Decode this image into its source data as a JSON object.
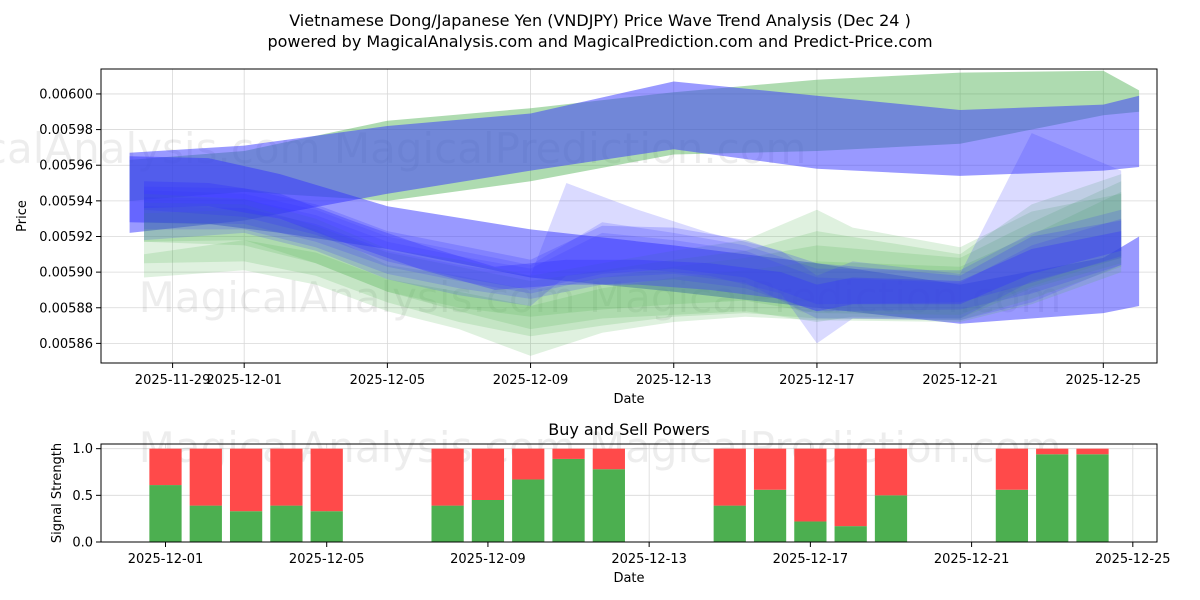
{
  "chart_data": [
    {
      "type": "area",
      "title_line1": "Vietnamese Dong/Japanese Yen (VNDJPY) Price Wave Trend Analysis (Dec 24 )",
      "title_line2": "powered by MagicalAnalysis.com and MagicalPrediction.com and Predict-Price.com",
      "xlabel": "Date",
      "ylabel": "Price",
      "xlim": [
        -2.0,
        27.5
      ],
      "ylim": [
        0.005849,
        0.006014
      ],
      "x_origin": "2025-11-29",
      "x_ticks": [
        {
          "x": 0,
          "label": "2025-11-29"
        },
        {
          "x": 2,
          "label": "2025-12-01"
        },
        {
          "x": 6,
          "label": "2025-12-05"
        },
        {
          "x": 10,
          "label": "2025-12-09"
        },
        {
          "x": 14,
          "label": "2025-12-13"
        },
        {
          "x": 18,
          "label": "2025-12-17"
        },
        {
          "x": 22,
          "label": "2025-12-21"
        },
        {
          "x": 26,
          "label": "2025-12-25"
        }
      ],
      "y_ticks": [
        {
          "y": 0.00586,
          "label": "0.00586"
        },
        {
          "y": 0.00588,
          "label": "0.00588"
        },
        {
          "y": 0.0059,
          "label": "0.00590"
        },
        {
          "y": 0.00592,
          "label": "0.00592"
        },
        {
          "y": 0.00594,
          "label": "0.00594"
        },
        {
          "y": 0.00596,
          "label": "0.00596"
        },
        {
          "y": 0.00598,
          "label": "0.00598"
        },
        {
          "y": 0.006,
          "label": "0.00600"
        }
      ],
      "watermark": "MagicalAnalysis.com    MagicalPrediction.com",
      "colors": {
        "green": "#4caf50",
        "blue": "#3333ff"
      },
      "bands": [
        {
          "color": "green",
          "opacity": 0.45,
          "x": [
            -1.2,
            2,
            6,
            10,
            14,
            18,
            22,
            26,
            27
          ],
          "low": [
            0.00594,
            0.005945,
            0.00594,
            0.005951,
            0.005966,
            0.005968,
            0.005972,
            0.005988,
            0.00599
          ],
          "high": [
            0.005963,
            0.005968,
            0.005985,
            0.005992,
            0.006001,
            0.006008,
            0.006012,
            0.006013,
            0.006002
          ]
        },
        {
          "color": "blue",
          "opacity": 0.5,
          "x": [
            -1.2,
            2,
            6,
            10,
            14,
            18,
            22,
            26,
            27
          ],
          "low": [
            0.005922,
            0.005929,
            0.005944,
            0.005957,
            0.005969,
            0.005958,
            0.005954,
            0.005957,
            0.005959
          ],
          "high": [
            0.005967,
            0.005971,
            0.005982,
            0.005989,
            0.006007,
            0.005999,
            0.005991,
            0.005994,
            0.005999
          ]
        },
        {
          "color": "blue",
          "opacity": 0.5,
          "x": [
            -1.2,
            1,
            3,
            6,
            10,
            14,
            18,
            22,
            26,
            27
          ],
          "low": [
            0.005928,
            0.005927,
            0.005922,
            0.005913,
            0.005897,
            0.005889,
            0.00588,
            0.005871,
            0.005877,
            0.005881
          ],
          "high": [
            0.005965,
            0.005964,
            0.005955,
            0.005937,
            0.005924,
            0.005915,
            0.005905,
            0.005893,
            0.005908,
            0.00592
          ]
        },
        {
          "color": "green",
          "opacity": 0.18,
          "x": [
            -0.8,
            2,
            4,
            6,
            8,
            10,
            12,
            14,
            16,
            18,
            19,
            22,
            24,
            26.5
          ],
          "low": [
            0.005917,
            0.005915,
            0.005905,
            0.005889,
            0.005878,
            0.005868,
            0.005874,
            0.005876,
            0.005878,
            0.005872,
            0.005875,
            0.005874,
            0.005891,
            0.005905
          ],
          "high": [
            0.005944,
            0.005941,
            0.00593,
            0.005913,
            0.005907,
            0.005898,
            0.005905,
            0.005912,
            0.005918,
            0.005935,
            0.005925,
            0.005914,
            0.005934,
            0.005944
          ]
        },
        {
          "color": "green",
          "opacity": 0.18,
          "x": [
            -0.8,
            2,
            4,
            6,
            8,
            10,
            12,
            14,
            16,
            18,
            22,
            24,
            26.5
          ],
          "low": [
            0.005905,
            0.005906,
            0.005898,
            0.005883,
            0.005872,
            0.005864,
            0.00587,
            0.005875,
            0.005877,
            0.005874,
            0.005873,
            0.005885,
            0.005903
          ],
          "high": [
            0.005933,
            0.005935,
            0.005924,
            0.005904,
            0.005898,
            0.00589,
            0.005897,
            0.005903,
            0.005908,
            0.005915,
            0.005908,
            0.005928,
            0.005951
          ]
        },
        {
          "color": "green",
          "opacity": 0.18,
          "x": [
            -0.8,
            2,
            4,
            6,
            8,
            10,
            12,
            14,
            16,
            18,
            22,
            24,
            26.5
          ],
          "low": [
            0.005897,
            0.005901,
            0.005893,
            0.005878,
            0.005868,
            0.005853,
            0.005866,
            0.005872,
            0.005875,
            0.005873,
            0.005872,
            0.005882,
            0.0059
          ],
          "high": [
            0.00591,
            0.005918,
            0.005911,
            0.005896,
            0.005889,
            0.005881,
            0.005891,
            0.005897,
            0.005901,
            0.005906,
            0.005903,
            0.005921,
            0.005945
          ]
        },
        {
          "color": "green",
          "opacity": 0.18,
          "x": [
            -0.8,
            2,
            4,
            6,
            8,
            10,
            12,
            14,
            16,
            18,
            22,
            24,
            26.5
          ],
          "low": [
            0.005917,
            0.005918,
            0.005905,
            0.005889,
            0.00588,
            0.005875,
            0.005879,
            0.005882,
            0.005884,
            0.005877,
            0.005876,
            0.005892,
            0.005908
          ],
          "high": [
            0.005939,
            0.005938,
            0.005926,
            0.005911,
            0.005903,
            0.005895,
            0.005901,
            0.005907,
            0.005912,
            0.005923,
            0.00591,
            0.005938,
            0.005955
          ]
        },
        {
          "color": "blue",
          "opacity": 0.18,
          "x": [
            -0.8,
            2,
            4,
            6,
            8,
            10,
            11,
            13,
            15,
            17,
            18,
            19,
            22,
            24,
            26.5
          ],
          "low": [
            0.005918,
            0.005922,
            0.005912,
            0.005896,
            0.005887,
            0.005881,
            0.005898,
            0.005902,
            0.005898,
            0.005888,
            0.00586,
            0.005874,
            0.005873,
            0.005883,
            0.005904
          ],
          "high": [
            0.005937,
            0.005936,
            0.005927,
            0.005912,
            0.005904,
            0.005898,
            0.00595,
            0.005935,
            0.005922,
            0.005912,
            0.005898,
            0.005906,
            0.005899,
            0.005978,
            0.005957
          ]
        },
        {
          "color": "blue",
          "opacity": 0.18,
          "x": [
            -0.8,
            2,
            4,
            6,
            8,
            10,
            12,
            14,
            16,
            18,
            22,
            24,
            26.5
          ],
          "low": [
            0.005928,
            0.005927,
            0.005917,
            0.005903,
            0.005895,
            0.005888,
            0.005897,
            0.005899,
            0.005894,
            0.005874,
            0.005874,
            0.005895,
            0.005908
          ],
          "high": [
            0.005946,
            0.005944,
            0.005935,
            0.00592,
            0.005912,
            0.005904,
            0.005928,
            0.005922,
            0.005915,
            0.005902,
            0.005901,
            0.005922,
            0.005935
          ]
        },
        {
          "color": "blue",
          "opacity": 0.18,
          "x": [
            -0.8,
            2,
            4,
            6,
            8,
            10,
            12,
            14,
            16,
            18,
            22,
            24,
            26.5
          ],
          "low": [
            0.005924,
            0.005924,
            0.005914,
            0.005899,
            0.005891,
            0.005885,
            0.005893,
            0.005896,
            0.005891,
            0.005878,
            0.005879,
            0.005888,
            0.005904
          ],
          "high": [
            0.005942,
            0.005941,
            0.005932,
            0.005917,
            0.005909,
            0.005902,
            0.005922,
            0.005918,
            0.005912,
            0.005897,
            0.005894,
            0.005915,
            0.00593
          ]
        },
        {
          "color": "blue",
          "opacity": 0.22,
          "x": [
            -0.8,
            2,
            4,
            6,
            8,
            10,
            12,
            14,
            16,
            18,
            22,
            24,
            26.5
          ],
          "low": [
            0.005935,
            0.005931,
            0.005921,
            0.005906,
            0.005897,
            0.00589,
            0.005899,
            0.005902,
            0.005897,
            0.005882,
            0.005883,
            0.005894,
            0.005909
          ],
          "high": [
            0.005948,
            0.005947,
            0.005938,
            0.005923,
            0.005915,
            0.005907,
            0.005926,
            0.005925,
            0.005918,
            0.005905,
            0.005898,
            0.00592,
            0.005929
          ]
        },
        {
          "color": "blue",
          "opacity": 0.35,
          "x": [
            -0.8,
            1,
            3,
            5,
            7,
            9,
            11,
            13,
            15,
            17,
            18,
            19,
            22,
            24,
            26.5
          ],
          "low": [
            0.005936,
            0.005937,
            0.00593,
            0.005915,
            0.005901,
            0.00589,
            0.005893,
            0.005893,
            0.00589,
            0.005885,
            0.005878,
            0.005882,
            0.005882,
            0.005899,
            0.005912
          ],
          "high": [
            0.005951,
            0.00595,
            0.005944,
            0.005929,
            0.005915,
            0.005903,
            0.005907,
            0.005907,
            0.005905,
            0.0059,
            0.005893,
            0.005897,
            0.005895,
            0.005913,
            0.005923
          ]
        }
      ]
    },
    {
      "type": "bar",
      "title": "Buy and Sell Powers",
      "xlabel": "Date",
      "ylabel": "Signal Strength",
      "xlim": [
        -1.6,
        24.6
      ],
      "ylim": [
        0,
        1.05
      ],
      "x_origin": "2025-12-01",
      "x_ticks": [
        {
          "x": 0,
          "label": "2025-12-01"
        },
        {
          "x": 4,
          "label": "2025-12-05"
        },
        {
          "x": 8,
          "label": "2025-12-09"
        },
        {
          "x": 12,
          "label": "2025-12-13"
        },
        {
          "x": 16,
          "label": "2025-12-17"
        },
        {
          "x": 20,
          "label": "2025-12-21"
        },
        {
          "x": 24,
          "label": "2025-12-25"
        }
      ],
      "y_ticks": [
        {
          "y": 0,
          "label": "0.0"
        },
        {
          "y": 0.5,
          "label": "0.5"
        },
        {
          "y": 1.0,
          "label": "1.0"
        }
      ],
      "watermark": "MagicalAnalysis.com    MagicalPrediction.com",
      "colors": {
        "buy": "#4caf50",
        "sell": "#ff4a4a"
      },
      "series": [
        {
          "name": "Buy",
          "x": [
            0,
            1,
            2,
            3,
            4,
            7,
            8,
            9,
            10,
            11,
            14,
            15,
            16,
            17,
            18,
            21,
            22,
            23
          ],
          "values": [
            0.61,
            0.39,
            0.33,
            0.39,
            0.33,
            0.39,
            0.45,
            0.67,
            0.89,
            0.78,
            0.39,
            0.56,
            0.22,
            0.17,
            0.5,
            0.56,
            0.94,
            0.94
          ]
        },
        {
          "name": "Sell",
          "x": [
            0,
            1,
            2,
            3,
            4,
            7,
            8,
            9,
            10,
            11,
            14,
            15,
            16,
            17,
            18,
            21,
            22,
            23
          ],
          "values": [
            0.39,
            0.61,
            0.67,
            0.61,
            0.67,
            0.61,
            0.55,
            0.33,
            0.11,
            0.22,
            0.61,
            0.44,
            0.78,
            0.83,
            0.5,
            0.44,
            0.06,
            0.06
          ]
        }
      ]
    }
  ]
}
